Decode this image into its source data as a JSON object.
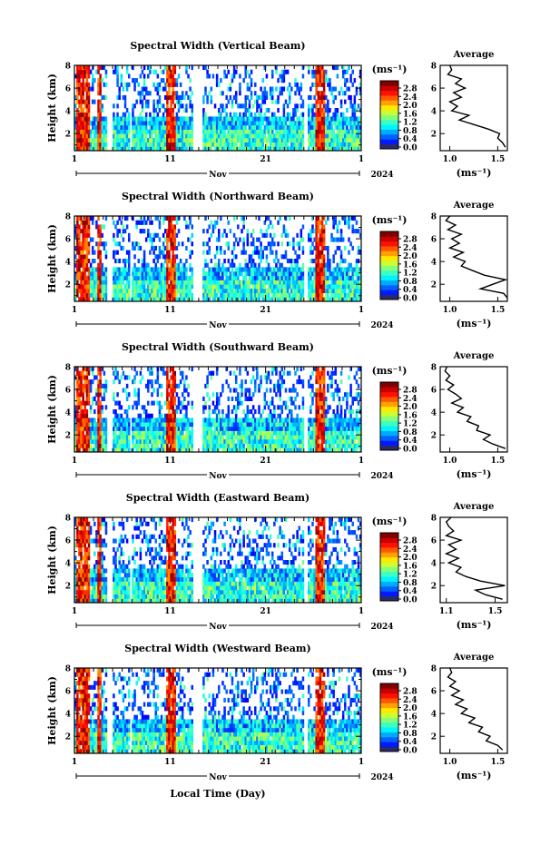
{
  "figure": {
    "xlabel": "Local Time (Day)",
    "month_label": "Nov",
    "year_label": "2024"
  },
  "chart_data": [
    {
      "type": "heatmap",
      "title": "Spectral Width (Vertical Beam)",
      "ylabel": "Height (km)",
      "xlim": [
        1,
        31
      ],
      "ylim": [
        0.5,
        8
      ],
      "x_ticklabels": [
        "1",
        "11",
        "21",
        "1"
      ],
      "y_ticklabels": [
        "2",
        "4",
        "6",
        "8"
      ],
      "colorbar": {
        "label": "(ms⁻¹)",
        "ticks": [
          "0.0",
          "0.4",
          "0.8",
          "1.2",
          "1.6",
          "2.0",
          "2.4",
          "2.8"
        ],
        "range": [
          0.0,
          2.8
        ]
      },
      "average_profile": {
        "title": "Average",
        "xlabel": "(ms⁻¹)",
        "xlim": [
          0.9,
          1.6
        ],
        "x_ticklabels": [
          "1.0",
          "1.5"
        ],
        "ylim": [
          0.5,
          8
        ],
        "height": [
          0.8,
          1.2,
          1.6,
          2.0,
          2.4,
          2.8,
          3.2,
          3.6,
          4.0,
          4.4,
          4.8,
          5.2,
          5.6,
          6.0,
          6.4,
          6.8,
          7.2,
          7.6,
          8.0
        ],
        "width": [
          1.58,
          1.55,
          1.5,
          1.52,
          1.4,
          1.25,
          1.1,
          1.2,
          1.02,
          1.08,
          1.0,
          1.12,
          1.04,
          1.16,
          1.06,
          1.12,
          0.98,
          1.02,
          1.0
        ]
      }
    },
    {
      "type": "heatmap",
      "title": "Spectral Width (Northward Beam)",
      "ylabel": "Height (km)",
      "xlim": [
        1,
        31
      ],
      "ylim": [
        0.5,
        8
      ],
      "x_ticklabels": [
        "1",
        "11",
        "21",
        "1"
      ],
      "y_ticklabels": [
        "2",
        "4",
        "6",
        "8"
      ],
      "colorbar": {
        "label": "(ms⁻¹)",
        "ticks": [
          "0.0",
          "0.4",
          "0.8",
          "1.2",
          "1.6",
          "2.0",
          "2.4",
          "2.8"
        ],
        "range": [
          0.0,
          2.8
        ]
      },
      "average_profile": {
        "title": "Average",
        "xlabel": "(ms⁻¹)",
        "xlim": [
          0.9,
          1.6
        ],
        "x_ticklabels": [
          "1.0",
          "1.5"
        ],
        "ylim": [
          0.5,
          8
        ],
        "height": [
          0.8,
          1.2,
          1.6,
          2.0,
          2.4,
          2.8,
          3.2,
          3.6,
          4.0,
          4.4,
          4.8,
          5.2,
          5.6,
          6.0,
          6.4,
          6.8,
          7.2,
          7.6,
          8.0
        ],
        "width": [
          1.6,
          1.56,
          1.32,
          1.45,
          1.58,
          1.36,
          1.24,
          1.12,
          1.16,
          1.04,
          1.14,
          1.0,
          1.1,
          1.02,
          1.12,
          0.98,
          1.06,
          0.96,
          1.0
        ]
      }
    },
    {
      "type": "heatmap",
      "title": "Spectral Width (Southward Beam)",
      "ylabel": "Height (km)",
      "xlim": [
        1,
        31
      ],
      "ylim": [
        0.5,
        8
      ],
      "x_ticklabels": [
        "1",
        "11",
        "21",
        "1"
      ],
      "y_ticklabels": [
        "2",
        "4",
        "6",
        "8"
      ],
      "colorbar": {
        "label": "(ms⁻¹)",
        "ticks": [
          "0.0",
          "0.4",
          "0.8",
          "1.2",
          "1.6",
          "2.0",
          "2.4",
          "2.8"
        ],
        "range": [
          0.0,
          2.8
        ]
      },
      "average_profile": {
        "title": "Average",
        "xlabel": "(ms⁻¹)",
        "xlim": [
          0.9,
          1.6
        ],
        "x_ticklabels": [
          "1.0",
          "1.5"
        ],
        "ylim": [
          0.5,
          8
        ],
        "height": [
          0.8,
          1.2,
          1.6,
          2.0,
          2.4,
          2.8,
          3.2,
          3.6,
          4.0,
          4.4,
          4.8,
          5.2,
          5.6,
          6.0,
          6.4,
          6.8,
          7.2,
          7.6,
          8.0
        ],
        "width": [
          1.58,
          1.45,
          1.35,
          1.42,
          1.28,
          1.3,
          1.18,
          1.22,
          1.08,
          1.14,
          1.02,
          1.12,
          1.06,
          0.98,
          1.04,
          0.96,
          1.0,
          0.95,
          0.97
        ]
      }
    },
    {
      "type": "heatmap",
      "title": "Spectral Width (Eastward Beam)",
      "ylabel": "Height (km)",
      "xlim": [
        1,
        31
      ],
      "ylim": [
        0.5,
        8
      ],
      "x_ticklabels": [
        "1",
        "11",
        "21",
        "1"
      ],
      "y_ticklabels": [
        "2",
        "4",
        "6",
        "8"
      ],
      "colorbar": {
        "label": "(ms⁻¹)",
        "ticks": [
          "0.0",
          "0.4",
          "0.8",
          "1.2",
          "1.6",
          "2.0",
          "2.4",
          "2.8"
        ],
        "range": [
          0.0,
          2.8
        ]
      },
      "average_profile": {
        "title": "Average",
        "xlabel": "(ms⁻¹)",
        "xlim": [
          1.05,
          1.6
        ],
        "x_ticklabels": [
          "1.1",
          "1.5"
        ],
        "ylim": [
          0.5,
          8
        ],
        "height": [
          0.8,
          1.2,
          1.6,
          2.0,
          2.4,
          2.8,
          3.2,
          3.6,
          4.0,
          4.4,
          4.8,
          5.2,
          5.6,
          6.0,
          6.4,
          6.8,
          7.2,
          7.6,
          8.0
        ],
        "width": [
          1.56,
          1.42,
          1.34,
          1.58,
          1.38,
          1.26,
          1.18,
          1.22,
          1.12,
          1.2,
          1.1,
          1.18,
          1.12,
          1.22,
          1.1,
          1.16,
          1.12,
          1.1,
          1.14
        ]
      }
    },
    {
      "type": "heatmap",
      "title": "Spectral Width (Westward Beam)",
      "ylabel": "Height (km)",
      "xlim": [
        1,
        31
      ],
      "ylim": [
        0.5,
        8
      ],
      "x_ticklabels": [
        "1",
        "11",
        "21",
        "1"
      ],
      "y_ticklabels": [
        "2",
        "4",
        "6",
        "8"
      ],
      "colorbar": {
        "label": "(ms⁻¹)",
        "ticks": [
          "0.0",
          "0.4",
          "0.8",
          "1.2",
          "1.6",
          "2.0",
          "2.4",
          "2.8"
        ],
        "range": [
          0.0,
          2.8
        ]
      },
      "average_profile": {
        "title": "Average",
        "xlabel": "(ms⁻¹)",
        "xlim": [
          0.9,
          1.6
        ],
        "x_ticklabels": [
          "1.0",
          "1.5"
        ],
        "ylim": [
          0.5,
          8
        ],
        "height": [
          0.8,
          1.2,
          1.6,
          2.0,
          2.4,
          2.8,
          3.2,
          3.6,
          4.0,
          4.4,
          4.8,
          5.2,
          5.6,
          6.0,
          6.4,
          6.8,
          7.2,
          7.6,
          8.0
        ],
        "width": [
          1.55,
          1.5,
          1.38,
          1.42,
          1.3,
          1.34,
          1.2,
          1.26,
          1.12,
          1.18,
          1.06,
          1.14,
          1.02,
          1.1,
          1.0,
          1.06,
          0.98,
          1.02,
          1.0
        ]
      }
    }
  ]
}
